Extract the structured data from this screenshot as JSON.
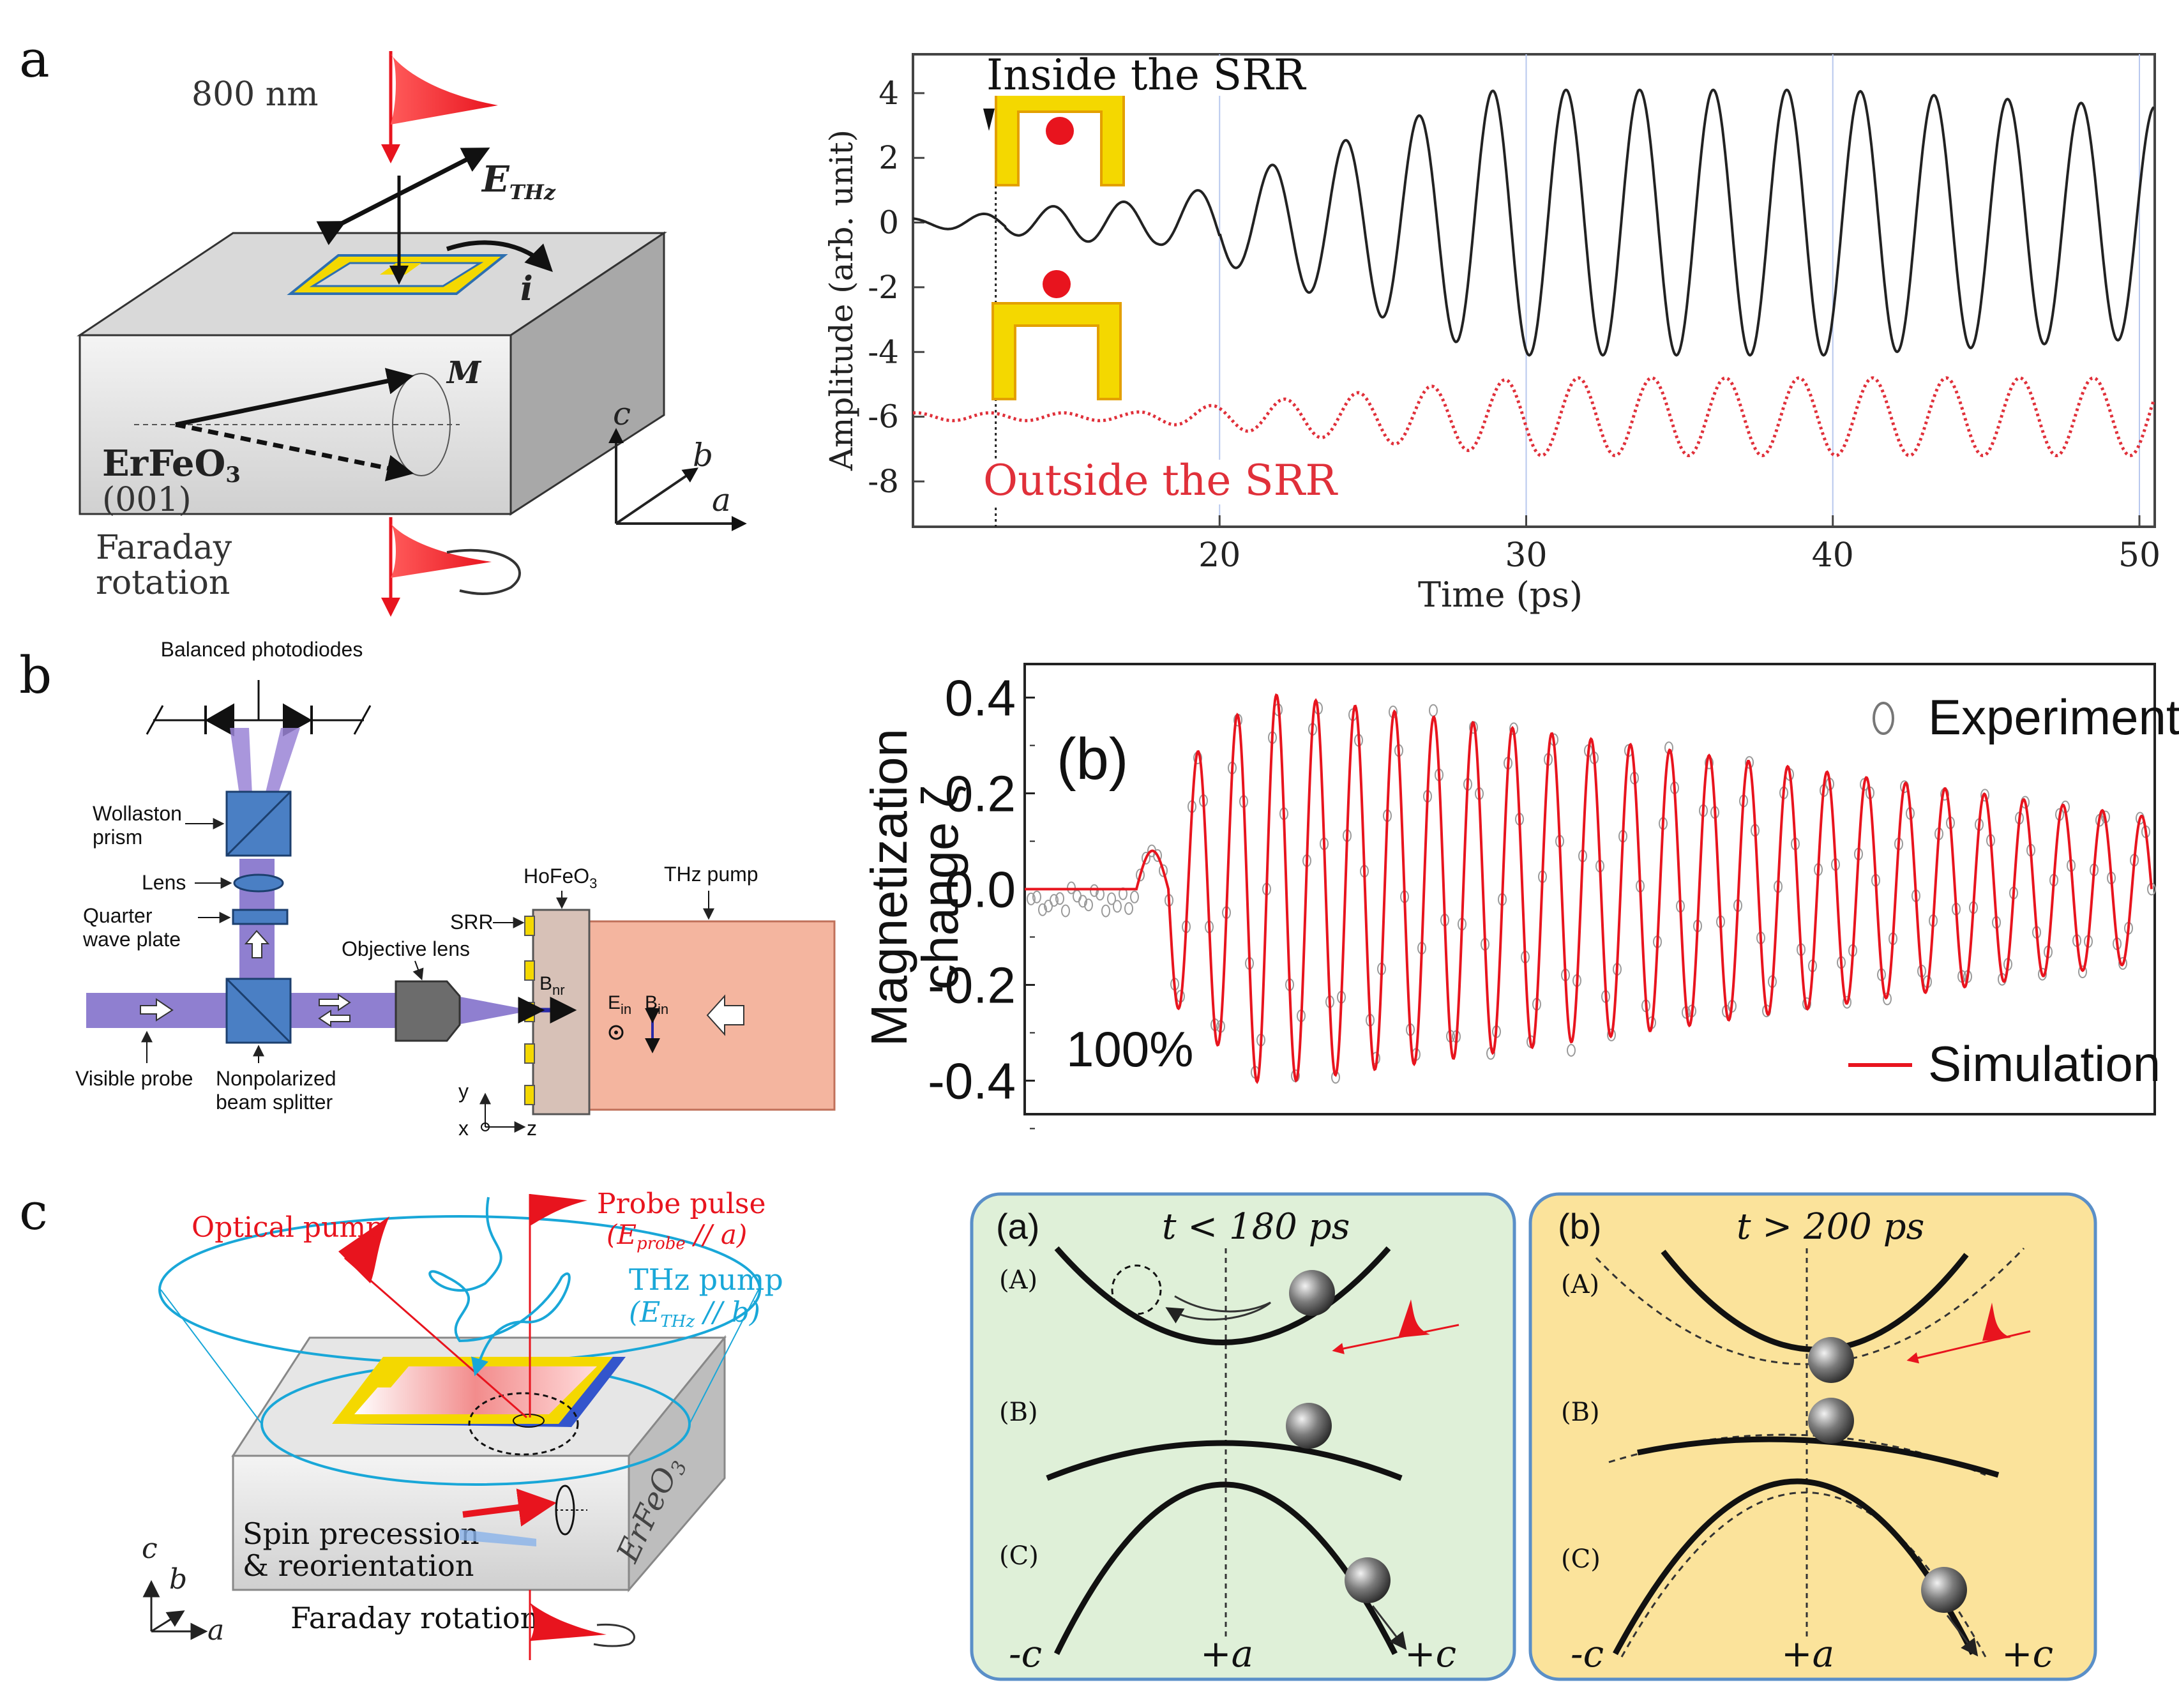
{
  "panel_labels": {
    "a": "a",
    "b": "b",
    "c": "c"
  },
  "panel_a": {
    "schematic": {
      "pump_label": "800 nm",
      "field_label": "E",
      "field_sub": "THz",
      "current_label": "i",
      "magnetization_label": "M",
      "crystal_label": "ErFeO",
      "crystal_sub": "3",
      "orientation_label": "(001)",
      "faraday_label_line1": "Faraday",
      "faraday_label_line2": "rotation",
      "axis_c": "c",
      "axis_b": "b",
      "axis_a": "a"
    },
    "chart": {
      "inside_label": "Inside the SRR",
      "outside_label": "Outside the SRR",
      "colors": {
        "inside": "#222222",
        "outside": "#e0303a",
        "srr": "#f4d800",
        "dot": "#e8141e"
      }
    }
  },
  "panel_b": {
    "schematic": {
      "balanced": "Balanced photodiodes",
      "wollaston_line1": "Wollaston",
      "wollaston_line2": "prism",
      "lens": "Lens",
      "quarter_line1": "Quarter",
      "quarter_line2": "wave plate",
      "objective": "Objective lens",
      "visible_probe": "Visible probe",
      "splitter_line1": "Nonpolarized",
      "splitter_line2": "beam splitter",
      "hofeo": "HoFeO",
      "hofeo_sub": "3",
      "srr": "SRR",
      "thz_pump": "THz pump",
      "bnr": "B",
      "bnr_sub": "nr",
      "ein": "E",
      "ein_sub": "in",
      "bin": "B",
      "bin_sub": "in",
      "axis_y": "y",
      "axis_x": "x",
      "axis_z": "z"
    },
    "chart": {
      "panel_tag": "(b)",
      "percent": "100%",
      "legend_experiment": "Experiment",
      "legend_simulation": "Simulation",
      "colors": {
        "simulation": "#e8141e",
        "experiment": "#9a9a9a"
      }
    }
  },
  "panel_c": {
    "schematic": {
      "optical_pump": "Optical pump",
      "probe_pulse": "Probe pulse",
      "probe_field": "(E",
      "probe_field_sub": "probe",
      "probe_field_rest": " // a)",
      "thz_pump": "THz pump",
      "thz_field": "(E",
      "thz_field_sub": "THz",
      "thz_field_rest": " // b)",
      "crystal": "ErFeO",
      "crystal_sub": "3",
      "spin_line1": "Spin precession",
      "spin_line2": "& reorientation",
      "faraday": "Faraday rotation",
      "axis_c": "c",
      "axis_b": "b",
      "axis_a": "a"
    },
    "energy_diagram": {
      "left": {
        "tag": "(a)",
        "condition": "t < 180 ps",
        "bg": "#dff0d8"
      },
      "right": {
        "tag": "(b)",
        "condition": "t > 200 ps",
        "bg": "#fbe39b"
      },
      "states": [
        "(A)",
        "(B)",
        "(C)"
      ],
      "axis_left": "-c",
      "axis_mid": "+a",
      "axis_right": "+c"
    }
  },
  "chart_data": [
    {
      "type": "line",
      "title": "",
      "xlabel": "Time (ps)",
      "ylabel": "Amplitude (arb. unit)",
      "xlim": [
        10,
        50.5
      ],
      "ylim": [
        -9.4,
        5.2
      ],
      "x_ticks": [
        20,
        30,
        40,
        50
      ],
      "y_ticks": [
        4,
        2,
        0,
        -2,
        -4,
        -6,
        -8
      ],
      "x_tick_labels": [
        "20",
        "30",
        "40",
        "50"
      ],
      "y_tick_labels": [
        "4",
        "2",
        "0",
        "-2",
        "-4",
        "-6",
        "-8"
      ],
      "marker_time_ps": 12.7,
      "series": [
        {
          "name": "Inside the SRR",
          "style": "solid",
          "offset": 0,
          "period_ps": 2.4,
          "peak_amplitude": 4.1
        },
        {
          "name": "Outside the SRR",
          "style": "dotted",
          "offset": -6,
          "period_ps": 2.4,
          "peak_amplitude": 1.2
        }
      ]
    },
    {
      "type": "line",
      "title": "",
      "xlabel": "",
      "ylabel": "Magnetization change ζ",
      "ylabel_line1": "Magnetization",
      "ylabel_line2": "change ζ",
      "ylim": [
        -0.47,
        0.47
      ],
      "y_ticks": [
        0.4,
        0.2,
        0.0,
        -0.2,
        -0.4
      ],
      "y_tick_labels": [
        "0.4",
        "0.2",
        "0.0",
        "-0.2",
        "-0.4"
      ],
      "series": [
        {
          "name": "Simulation",
          "style": "line",
          "peak_amplitude": 0.41,
          "cycles": 25
        },
        {
          "name": "Experiment",
          "style": "open-circle",
          "peak_amplitude": 0.42,
          "cycles": 25
        }
      ]
    }
  ]
}
